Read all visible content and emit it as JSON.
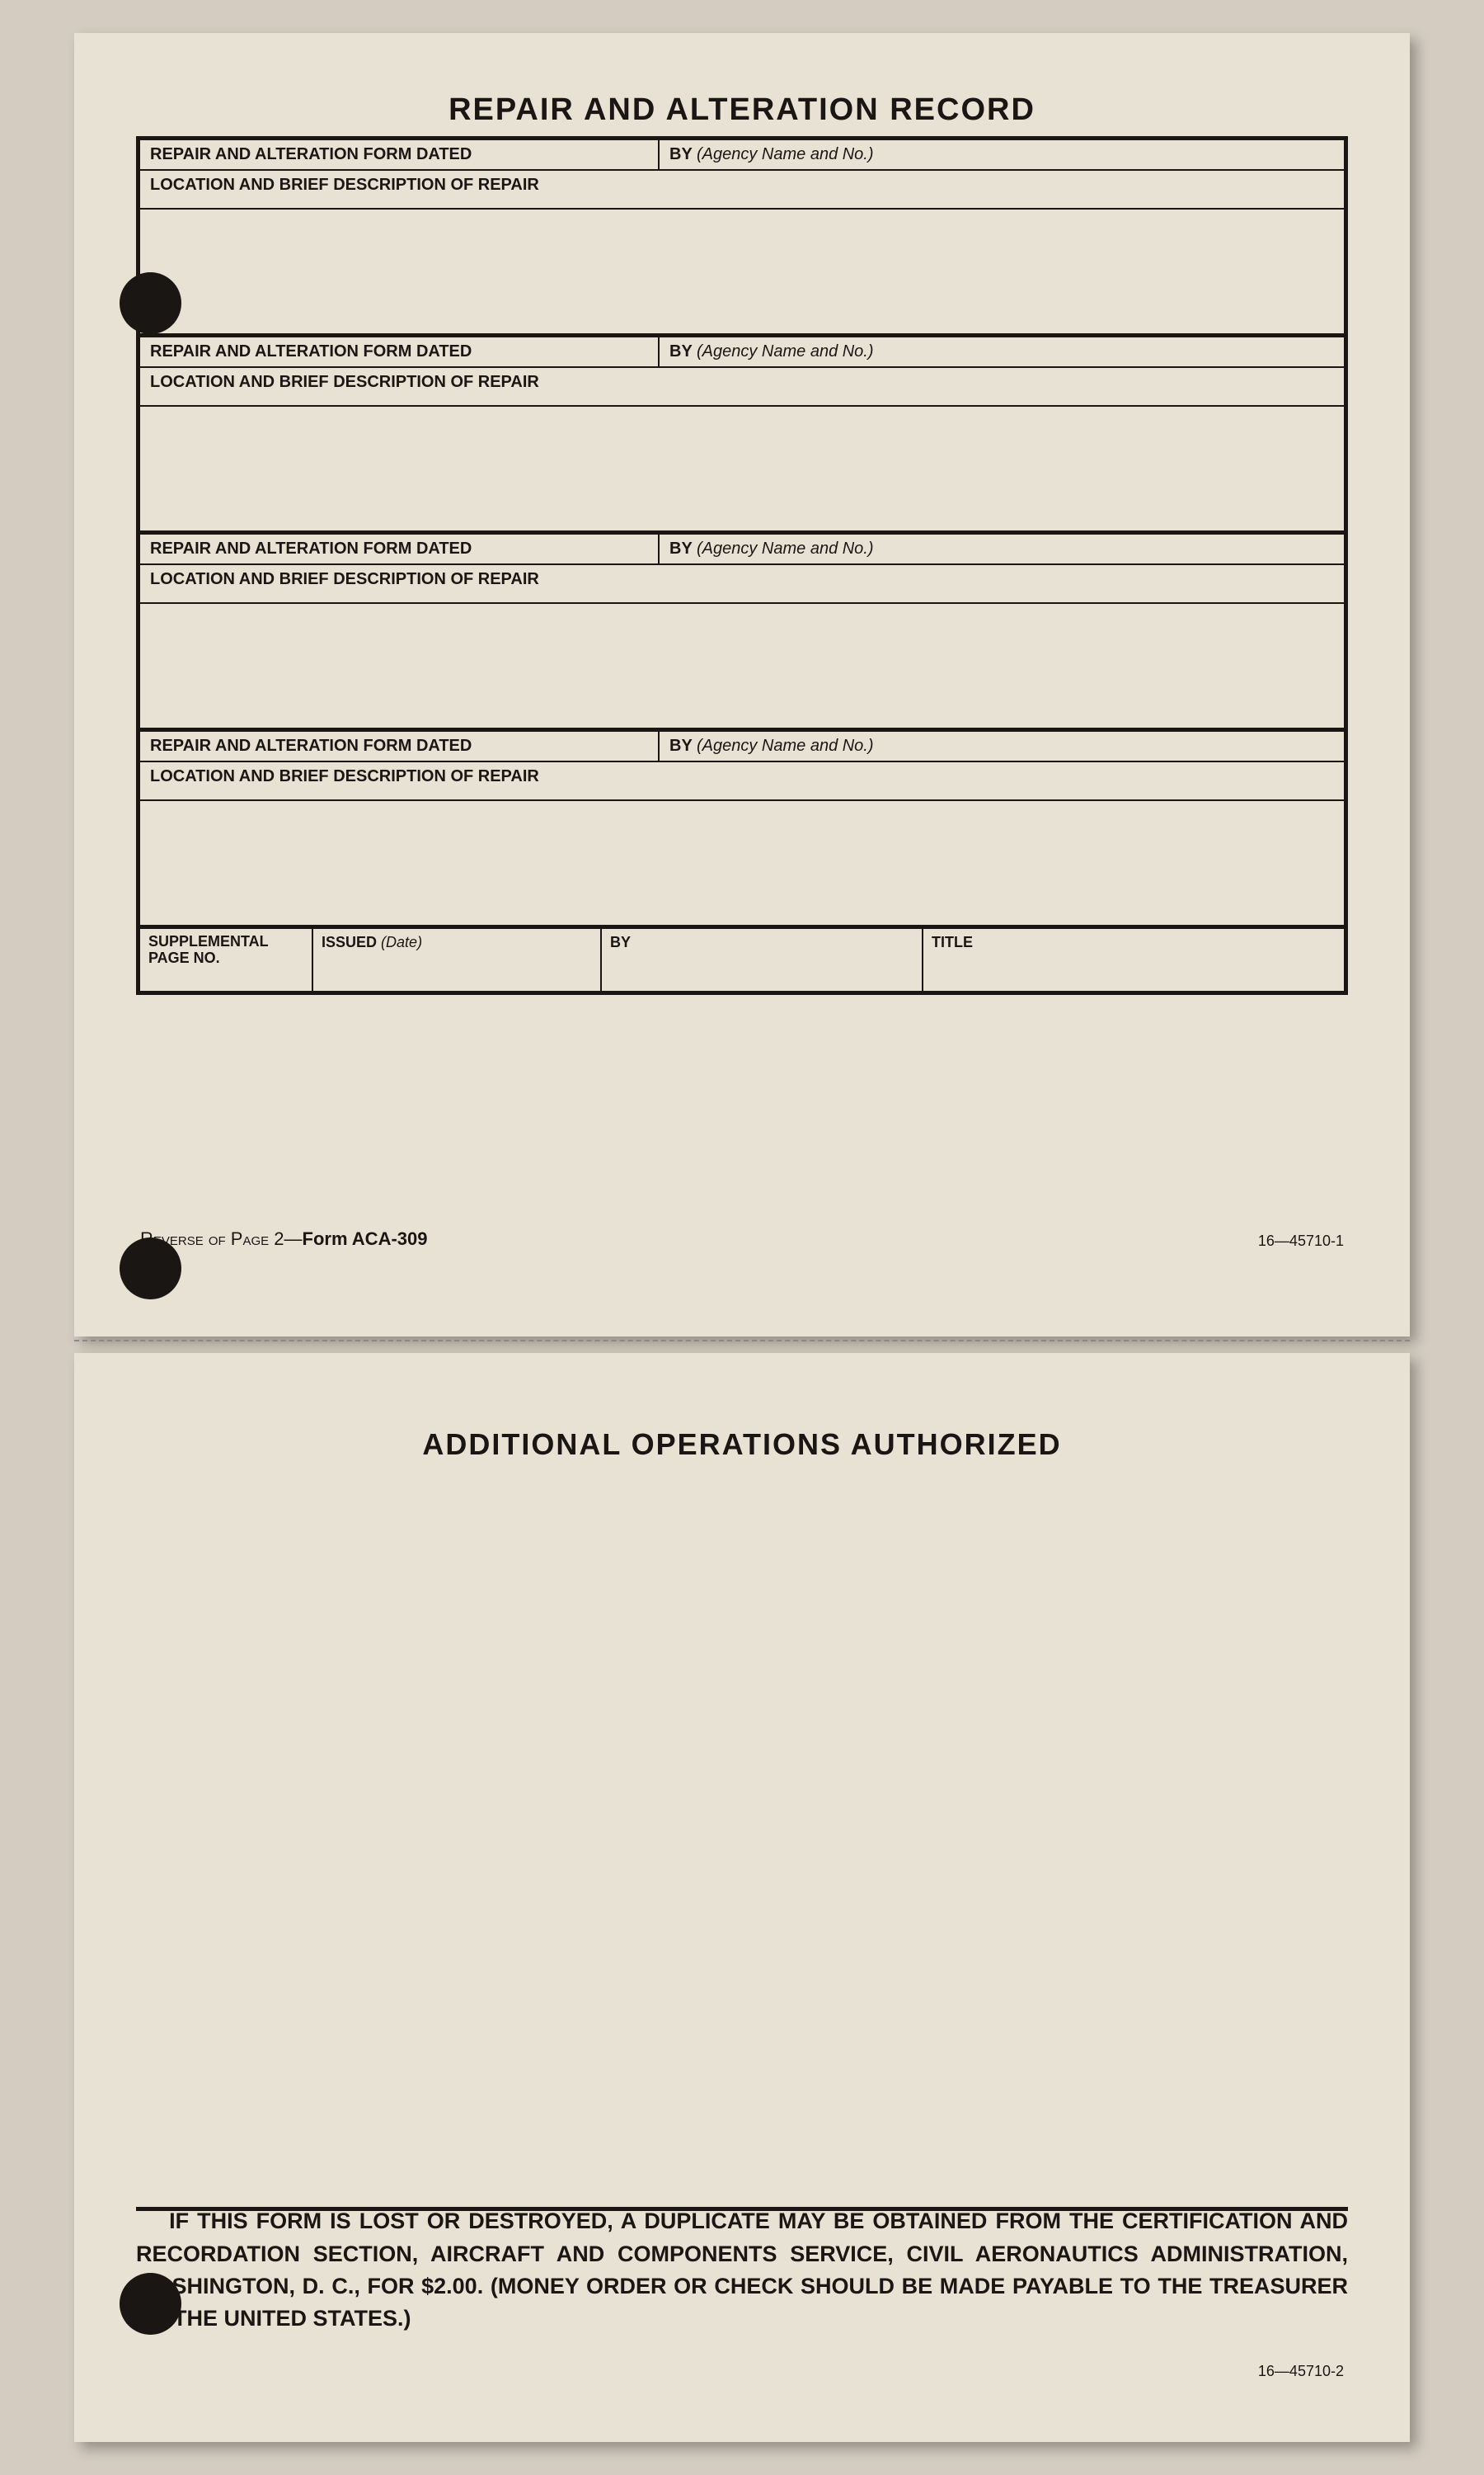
{
  "titles": {
    "top": "REPAIR AND ALTERATION RECORD",
    "bottom": "ADDITIONAL OPERATIONS AUTHORIZED"
  },
  "labels": {
    "formDated": "REPAIR AND ALTERATION FORM DATED",
    "by": "BY",
    "agencyHint": "(Agency Name and No.)",
    "location": "LOCATION AND BRIEF DESCRIPTION OF REPAIR",
    "supplementalPage": "SUPPLEMENTAL PAGE NO.",
    "issued": "ISSUED",
    "issuedHint": "(Date)",
    "byShort": "BY",
    "title": "TITLE"
  },
  "footer": {
    "reverseText": "Reverse of Page 2—",
    "formName": "Form ACA-309",
    "codeTop": "16—45710-1",
    "codeBottom": "16—45710-2"
  },
  "bottomNotice": "IF THIS FORM IS LOST OR DESTROYED, A DUPLICATE MAY BE OBTAINED FROM THE CERTIFICATION AND RECORDATION SECTION, AIRCRAFT AND COMPONENTS SERVICE, CIVIL AERONAUTICS ADMINISTRATION, WASHINGTON, D. C., FOR $2.00. (MONEY ORDER OR CHECK SHOULD BE MADE PAYABLE TO THE TREASURER OF THE UNITED STATES.)"
}
